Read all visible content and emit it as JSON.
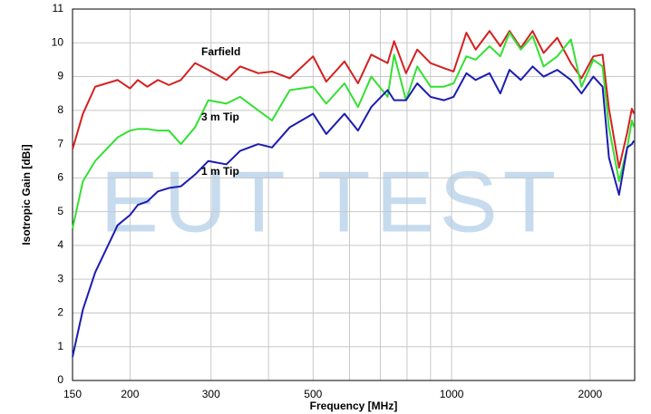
{
  "chart_data": {
    "type": "line",
    "x_label": "Frequency [MHz]",
    "y_label": "Isotropic Gain [dBi]",
    "watermark": "EUT TEST",
    "x_log": true,
    "grid": true,
    "x": [
      150,
      158,
      168,
      188,
      200,
      208,
      218,
      230,
      243,
      258,
      277,
      296,
      324,
      347,
      380,
      407,
      445,
      500,
      534,
      585,
      626,
      669,
      726,
      750,
      796,
      842,
      900,
      962,
      1010,
      1077,
      1128,
      1209,
      1276,
      1336,
      1414,
      1500,
      1585,
      1697,
      1817,
      1916,
      2033,
      2129,
      2198,
      2312,
      2409,
      2465,
      2490
    ],
    "series": [
      {
        "name": "Farfield",
        "color": "#d42020",
        "values": [
          6.85,
          7.9,
          8.7,
          8.9,
          8.65,
          8.9,
          8.7,
          8.9,
          8.75,
          8.9,
          9.4,
          9.2,
          8.9,
          9.3,
          9.1,
          9.15,
          8.95,
          9.6,
          8.85,
          9.45,
          8.8,
          9.65,
          9.4,
          10.05,
          9.1,
          9.8,
          9.4,
          9.25,
          9.15,
          10.3,
          9.8,
          10.35,
          9.9,
          10.35,
          9.85,
          10.35,
          9.7,
          10.15,
          9.4,
          8.95,
          9.6,
          9.65,
          8.05,
          6.3,
          7.35,
          8.05,
          7.9
        ]
      },
      {
        "name": "3 m Tip",
        "color": "#33e033",
        "values": [
          4.5,
          5.9,
          6.5,
          7.2,
          7.4,
          7.45,
          7.45,
          7.4,
          7.4,
          7.0,
          7.5,
          8.3,
          8.2,
          8.4,
          8.0,
          7.7,
          8.6,
          8.7,
          8.2,
          8.8,
          8.1,
          9.0,
          8.4,
          9.65,
          8.3,
          9.3,
          8.7,
          8.7,
          8.8,
          9.6,
          9.5,
          9.9,
          9.6,
          10.3,
          9.8,
          10.2,
          9.3,
          9.6,
          10.1,
          8.7,
          9.5,
          9.3,
          7.5,
          5.9,
          6.9,
          7.7,
          7.5
        ]
      },
      {
        "name": "1 m Tip",
        "color": "#1c1cb0",
        "values": [
          0.7,
          2.1,
          3.2,
          4.6,
          4.9,
          5.2,
          5.3,
          5.6,
          5.7,
          5.75,
          6.1,
          6.5,
          6.4,
          6.8,
          7.0,
          6.9,
          7.5,
          7.9,
          7.3,
          7.9,
          7.4,
          8.1,
          8.6,
          8.3,
          8.3,
          8.8,
          8.4,
          8.3,
          8.4,
          9.1,
          8.9,
          9.1,
          8.5,
          9.2,
          8.9,
          9.3,
          9.0,
          9.2,
          8.9,
          8.5,
          9.0,
          8.7,
          6.6,
          5.5,
          6.9,
          7.0,
          7.1
        ]
      }
    ],
    "xlim": [
      150,
      2500
    ],
    "xticks": [
      150,
      200,
      300,
      500,
      1000,
      2000
    ],
    "xgrid_minor": [
      400,
      600,
      700,
      800,
      900
    ],
    "ylim": [
      0,
      11
    ],
    "yticks": [
      0,
      1,
      2,
      3,
      4,
      5,
      6,
      7,
      8,
      9,
      10,
      11
    ]
  }
}
